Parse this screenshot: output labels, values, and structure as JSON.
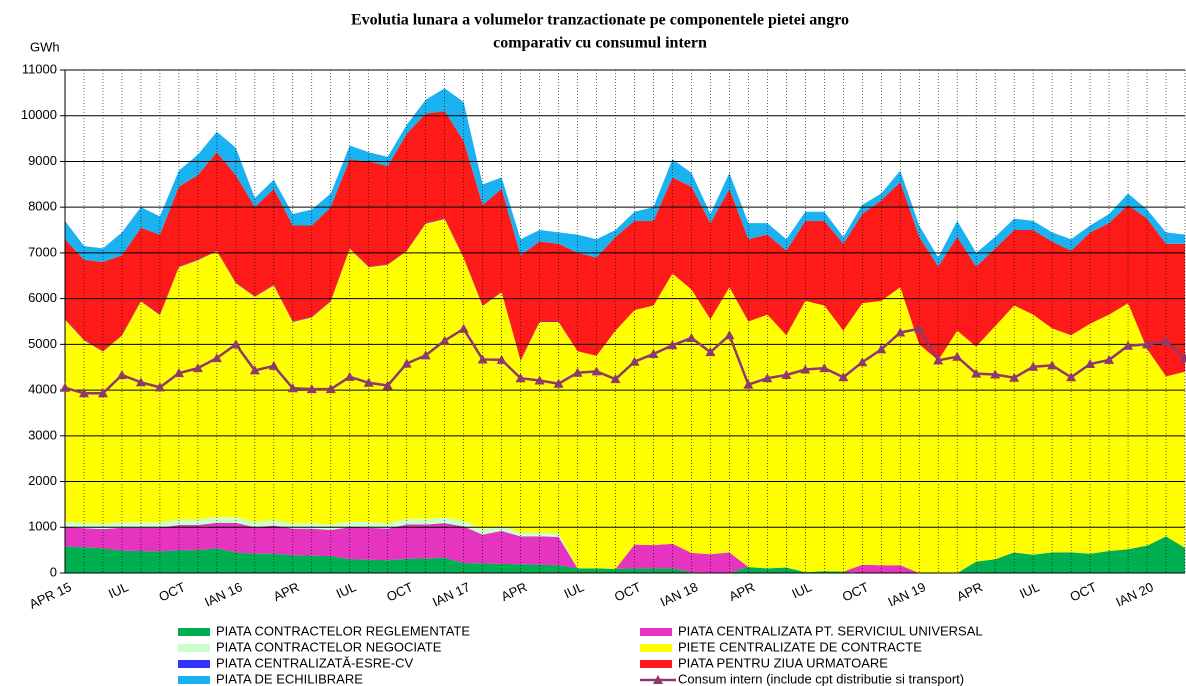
{
  "chart_data": {
    "type": "area",
    "title": [
      "Evolutia lunara a volumelor tranzactionate pe componentele pietei angro",
      "comparativ cu consumul intern"
    ],
    "ylabel": "GWh",
    "ylim": [
      0,
      11000
    ],
    "yticks": [
      0,
      1000,
      2000,
      3000,
      4000,
      5000,
      6000,
      7000,
      8000,
      9000,
      10000,
      11000
    ],
    "grid": true,
    "categories": [
      "APR 15",
      null,
      null,
      "IUL",
      null,
      null,
      "OCT",
      null,
      null,
      "IAN 16",
      null,
      null,
      "APR",
      null,
      null,
      "IUL",
      null,
      null,
      "OCT",
      null,
      null,
      "IAN 17",
      null,
      null,
      "APR",
      null,
      null,
      "IUL",
      null,
      null,
      "OCT",
      null,
      null,
      "IAN 18",
      null,
      null,
      "APR",
      null,
      null,
      "IUL",
      null,
      null,
      "OCT",
      null,
      null,
      "IAN 19",
      null,
      null,
      "APR",
      null,
      null,
      "IUL",
      null,
      null,
      "OCT",
      null,
      null,
      "IAN 20",
      null,
      null
    ],
    "series": [
      {
        "name": "PIATA CONTRACTELOR REGLEMENTATE",
        "type": "area",
        "color": "#00b050",
        "values": [
          580,
          560,
          540,
          490,
          480,
          470,
          500,
          500,
          540,
          450,
          420,
          420,
          390,
          380,
          370,
          300,
          290,
          280,
          310,
          320,
          330,
          220,
          210,
          200,
          190,
          180,
          170,
          100,
          100,
          90,
          100,
          100,
          100,
          20,
          10,
          10,
          130,
          100,
          120,
          20,
          40,
          30,
          0,
          0,
          0,
          0,
          0,
          0,
          250,
          300,
          450,
          400,
          450,
          450,
          420,
          480,
          520,
          600,
          800,
          550
        ]
      },
      {
        "name": "PIATA CENTRALIZATA PT. SERVICIUL UNIVERSAL",
        "type": "area",
        "color": "#e633c0",
        "values": [
          420,
          420,
          420,
          500,
          510,
          520,
          550,
          550,
          560,
          650,
          580,
          620,
          580,
          590,
          570,
          700,
          700,
          690,
          750,
          740,
          760,
          800,
          630,
          720,
          610,
          620,
          620,
          0,
          0,
          0,
          520,
          510,
          540,
          420,
          400,
          440,
          0,
          0,
          0,
          0,
          0,
          0,
          180,
          170,
          170,
          0,
          0,
          0,
          0,
          0,
          0,
          0,
          0,
          0,
          0,
          0,
          0,
          0,
          0,
          0
        ]
      },
      {
        "name": "PIATA CONTRACTELOR NEGOCIATE",
        "type": "area",
        "color": "#ccffcc",
        "values": [
          120,
          120,
          120,
          120,
          120,
          120,
          120,
          120,
          120,
          120,
          120,
          120,
          120,
          120,
          120,
          120,
          120,
          120,
          120,
          120,
          120,
          120,
          120,
          120,
          80,
          80,
          80,
          0,
          0,
          0,
          0,
          0,
          0,
          0,
          0,
          0,
          0,
          0,
          0,
          0,
          0,
          0,
          0,
          0,
          0,
          0,
          0,
          0,
          0,
          0,
          0,
          0,
          0,
          0,
          0,
          0,
          0,
          0,
          0,
          0
        ]
      },
      {
        "name": "PIETE CENTRALIZATE DE CONTRACTE",
        "type": "area",
        "color": "#ffff00",
        "values": [
          4420,
          3990,
          3760,
          4080,
          4830,
          4530,
          5520,
          5670,
          5820,
          5120,
          4920,
          5130,
          4400,
          4500,
          4880,
          5970,
          5580,
          5650,
          5860,
          6460,
          6530,
          5750,
          4880,
          5100,
          3760,
          4610,
          4620,
          4750,
          4650,
          5210,
          5130,
          5240,
          5910,
          5760,
          5140,
          5800,
          5370,
          5550,
          5080,
          5930,
          5810,
          5270,
          5720,
          5780,
          6080,
          5000,
          4650,
          5300,
          4700,
          5100,
          5400,
          5250,
          4900,
          4750,
          5030,
          5170,
          5380,
          4300,
          3500,
          3850
        ]
      },
      {
        "name": "PIATA CENTRALIZATĂ-ESRE-CV",
        "type": "area",
        "color": "#3333ff",
        "values": [
          10,
          10,
          10,
          10,
          10,
          10,
          10,
          10,
          10,
          10,
          10,
          10,
          10,
          10,
          10,
          10,
          10,
          10,
          10,
          10,
          10,
          10,
          10,
          10,
          10,
          10,
          10,
          0,
          0,
          0,
          0,
          0,
          0,
          0,
          0,
          0,
          0,
          0,
          0,
          0,
          0,
          0,
          0,
          0,
          0,
          0,
          0,
          0,
          0,
          0,
          0,
          0,
          0,
          0,
          0,
          0,
          0,
          0,
          0,
          0
        ]
      },
      {
        "name": "PIATA PENTRU ZIUA URMATOARE",
        "type": "area",
        "color": "#ff1a1a",
        "values": [
          1750,
          1750,
          1950,
          1750,
          1600,
          1750,
          1750,
          1850,
          2150,
          2350,
          1950,
          2100,
          2100,
          2000,
          2050,
          1950,
          2300,
          2150,
          2550,
          2400,
          2350,
          2550,
          2200,
          2250,
          2300,
          1750,
          1700,
          2150,
          2150,
          2050,
          1950,
          1850,
          2100,
          2250,
          2100,
          2150,
          1800,
          1750,
          1850,
          1750,
          1850,
          1900,
          1950,
          2200,
          2300,
          2350,
          2050,
          2050,
          1750,
          1700,
          1650,
          1850,
          1900,
          1850,
          2000,
          2000,
          2150,
          2850,
          2900,
          2800
        ]
      },
      {
        "name": "PIATA DE ECHILIBRARE",
        "type": "area",
        "color": "#1ab2f0",
        "values": [
          400,
          300,
          300,
          500,
          450,
          400,
          350,
          450,
          450,
          600,
          200,
          200,
          250,
          350,
          300,
          300,
          200,
          200,
          200,
          300,
          500,
          850,
          450,
          250,
          350,
          250,
          250,
          400,
          400,
          150,
          200,
          300,
          400,
          300,
          200,
          350,
          350,
          250,
          250,
          200,
          200,
          150,
          200,
          150,
          250,
          250,
          200,
          350,
          300,
          250,
          250,
          200,
          200,
          250,
          150,
          200,
          250,
          200,
          250,
          200
        ]
      },
      {
        "name": "Consum intern (include cpt distributie si transport)",
        "type": "line",
        "color": "#8b3a6b",
        "values": [
          4050,
          3930,
          3930,
          4330,
          4170,
          4060,
          4370,
          4480,
          4700,
          5000,
          4430,
          4530,
          4040,
          4020,
          4020,
          4290,
          4160,
          4100,
          4580,
          4760,
          5080,
          5340,
          4670,
          4660,
          4260,
          4210,
          4140,
          4380,
          4410,
          4240,
          4620,
          4790,
          4980,
          5140,
          4830,
          5200,
          4120,
          4260,
          4330,
          4450,
          4480,
          4280,
          4610,
          4890,
          5260,
          5340,
          4650,
          4730,
          4360,
          4340,
          4270,
          4510,
          4540,
          4280,
          4570,
          4660,
          4970,
          5000,
          5070,
          4690
        ]
      }
    ]
  }
}
